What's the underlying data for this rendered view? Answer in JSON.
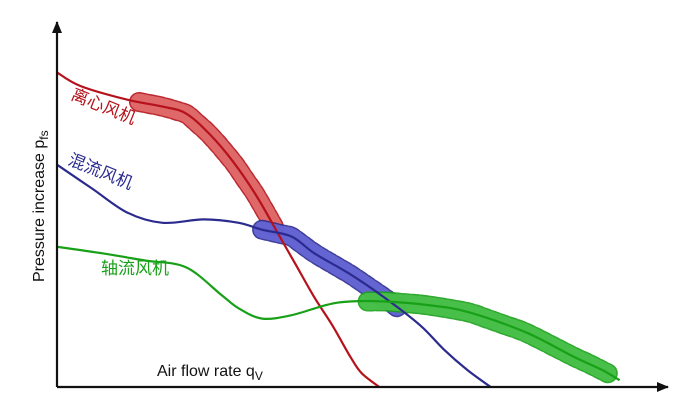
{
  "chart_data": {
    "type": "line",
    "xlabel": "Air flow rate q",
    "xlabel_sub": "V",
    "ylabel": "Pressure increase  p",
    "ylabel_sub": "fs",
    "xlim": [
      0,
      100
    ],
    "ylim": [
      0,
      100
    ],
    "ticks": "none",
    "grid": false,
    "legend": "inline labels",
    "series": [
      {
        "name": "离心风机",
        "color": "#b5121b",
        "band_color": "#e57373",
        "x": [
          0,
          4,
          12,
          18,
          22,
          26,
          30,
          34,
          38,
          41,
          44,
          47,
          50,
          52,
          55
        ],
        "y": [
          92,
          88,
          84,
          82,
          80,
          74,
          66,
          56,
          44,
          35,
          26,
          18,
          9,
          4,
          0
        ],
        "band_x": [
          14,
          37
        ]
      },
      {
        "name": "混流风机",
        "color": "#2b2b8f",
        "band_color": "#6b6bdc",
        "x": [
          0,
          6,
          12,
          18,
          25,
          31,
          35,
          40,
          44,
          50,
          56,
          62,
          66,
          70,
          74
        ],
        "y": [
          65,
          58,
          51,
          48,
          49,
          48,
          46,
          44,
          39,
          33,
          26,
          18,
          11,
          5,
          0
        ],
        "band_x": [
          35,
          58
        ]
      },
      {
        "name": "轴流风机",
        "color": "#18a018",
        "band_color": "#4cc34c",
        "x": [
          0,
          8,
          15,
          22,
          28,
          31,
          35,
          40,
          46,
          50,
          56,
          63,
          70,
          80,
          88,
          93,
          96
        ],
        "y": [
          41,
          39,
          37,
          35,
          27,
          23,
          20,
          21,
          24,
          25,
          25,
          24,
          22,
          16,
          9,
          5,
          2
        ],
        "band_x": [
          53,
          94
        ]
      }
    ]
  },
  "colors": {
    "axis": "#111111",
    "background": "#ffffff"
  }
}
